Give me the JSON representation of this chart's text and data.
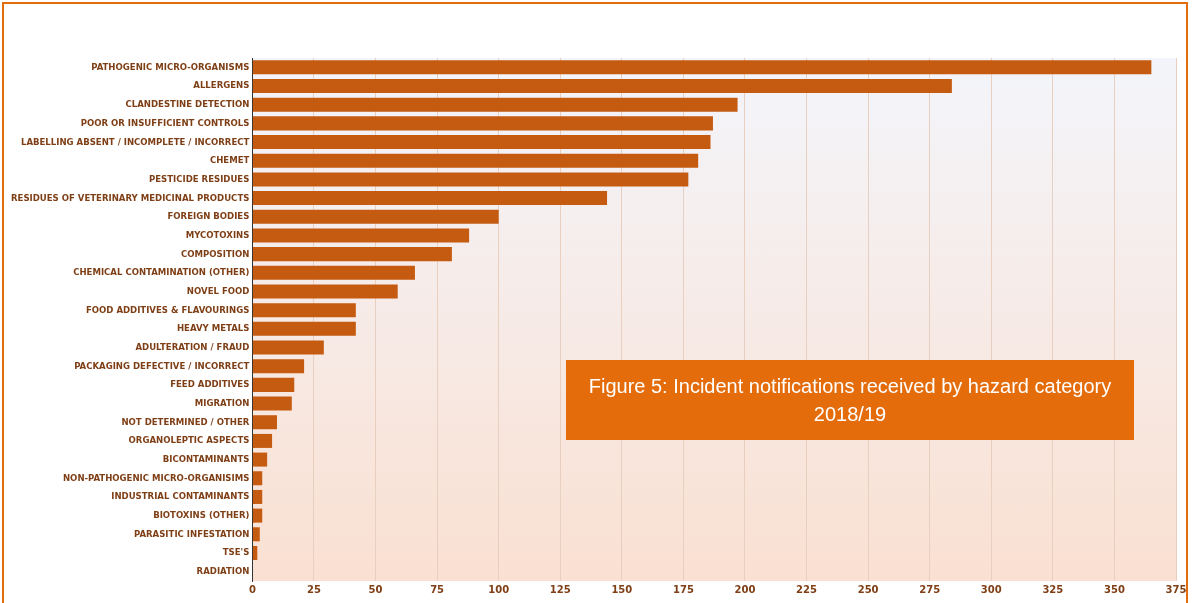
{
  "chart_data": {
    "type": "bar",
    "orientation": "horizontal",
    "title": "Figure 5: Incident notifications received by hazard category 2018/19",
    "categories": [
      "PATHOGENIC MICRO-ORGANISMS",
      "ALLERGENS",
      "CLANDESTINE DETECTION",
      "POOR OR INSUFFICIENT CONTROLS",
      "LABELLING ABSENT / INCOMPLETE / INCORRECT",
      "CHEMET",
      "PESTICIDE RESIDUES",
      "RESIDUES OF VETERINARY MEDICINAL PRODUCTS",
      "FOREIGN BODIES",
      "MYCOTOXINS",
      "COMPOSITION",
      "CHEMICAL CONTAMINATION (OTHER)",
      "NOVEL FOOD",
      "FOOD ADDITIVES & FLAVOURINGS",
      "HEAVY METALS",
      "ADULTERATION / FRAUD",
      "PACKAGING DEFECTIVE / INCORRECT",
      "FEED ADDITIVES",
      "MIGRATION",
      "NOT DETERMINED / OTHER",
      "ORGANOLEPTIC ASPECTS",
      "BICONTAMINANTS",
      "NON-PATHOGENIC MICRO-ORGANISIMS",
      "INDUSTRIAL CONTAMINANTS",
      "BIOTOXINS (OTHER)",
      "PARASITIC INFESTATION",
      "TSE'S",
      "RADIATION"
    ],
    "values": [
      365,
      284,
      197,
      187,
      186,
      181,
      177,
      144,
      100,
      88,
      81,
      66,
      59,
      42,
      42,
      29,
      21,
      17,
      16,
      10,
      8,
      6,
      4,
      4,
      4,
      3,
      2,
      0
    ],
    "color": "#c55a11",
    "xlim": [
      0,
      375
    ],
    "xticks": [
      0,
      25,
      50,
      75,
      100,
      125,
      150,
      175,
      200,
      225,
      250,
      275,
      300,
      325,
      350,
      375
    ],
    "grid": "x",
    "legend": false
  }
}
